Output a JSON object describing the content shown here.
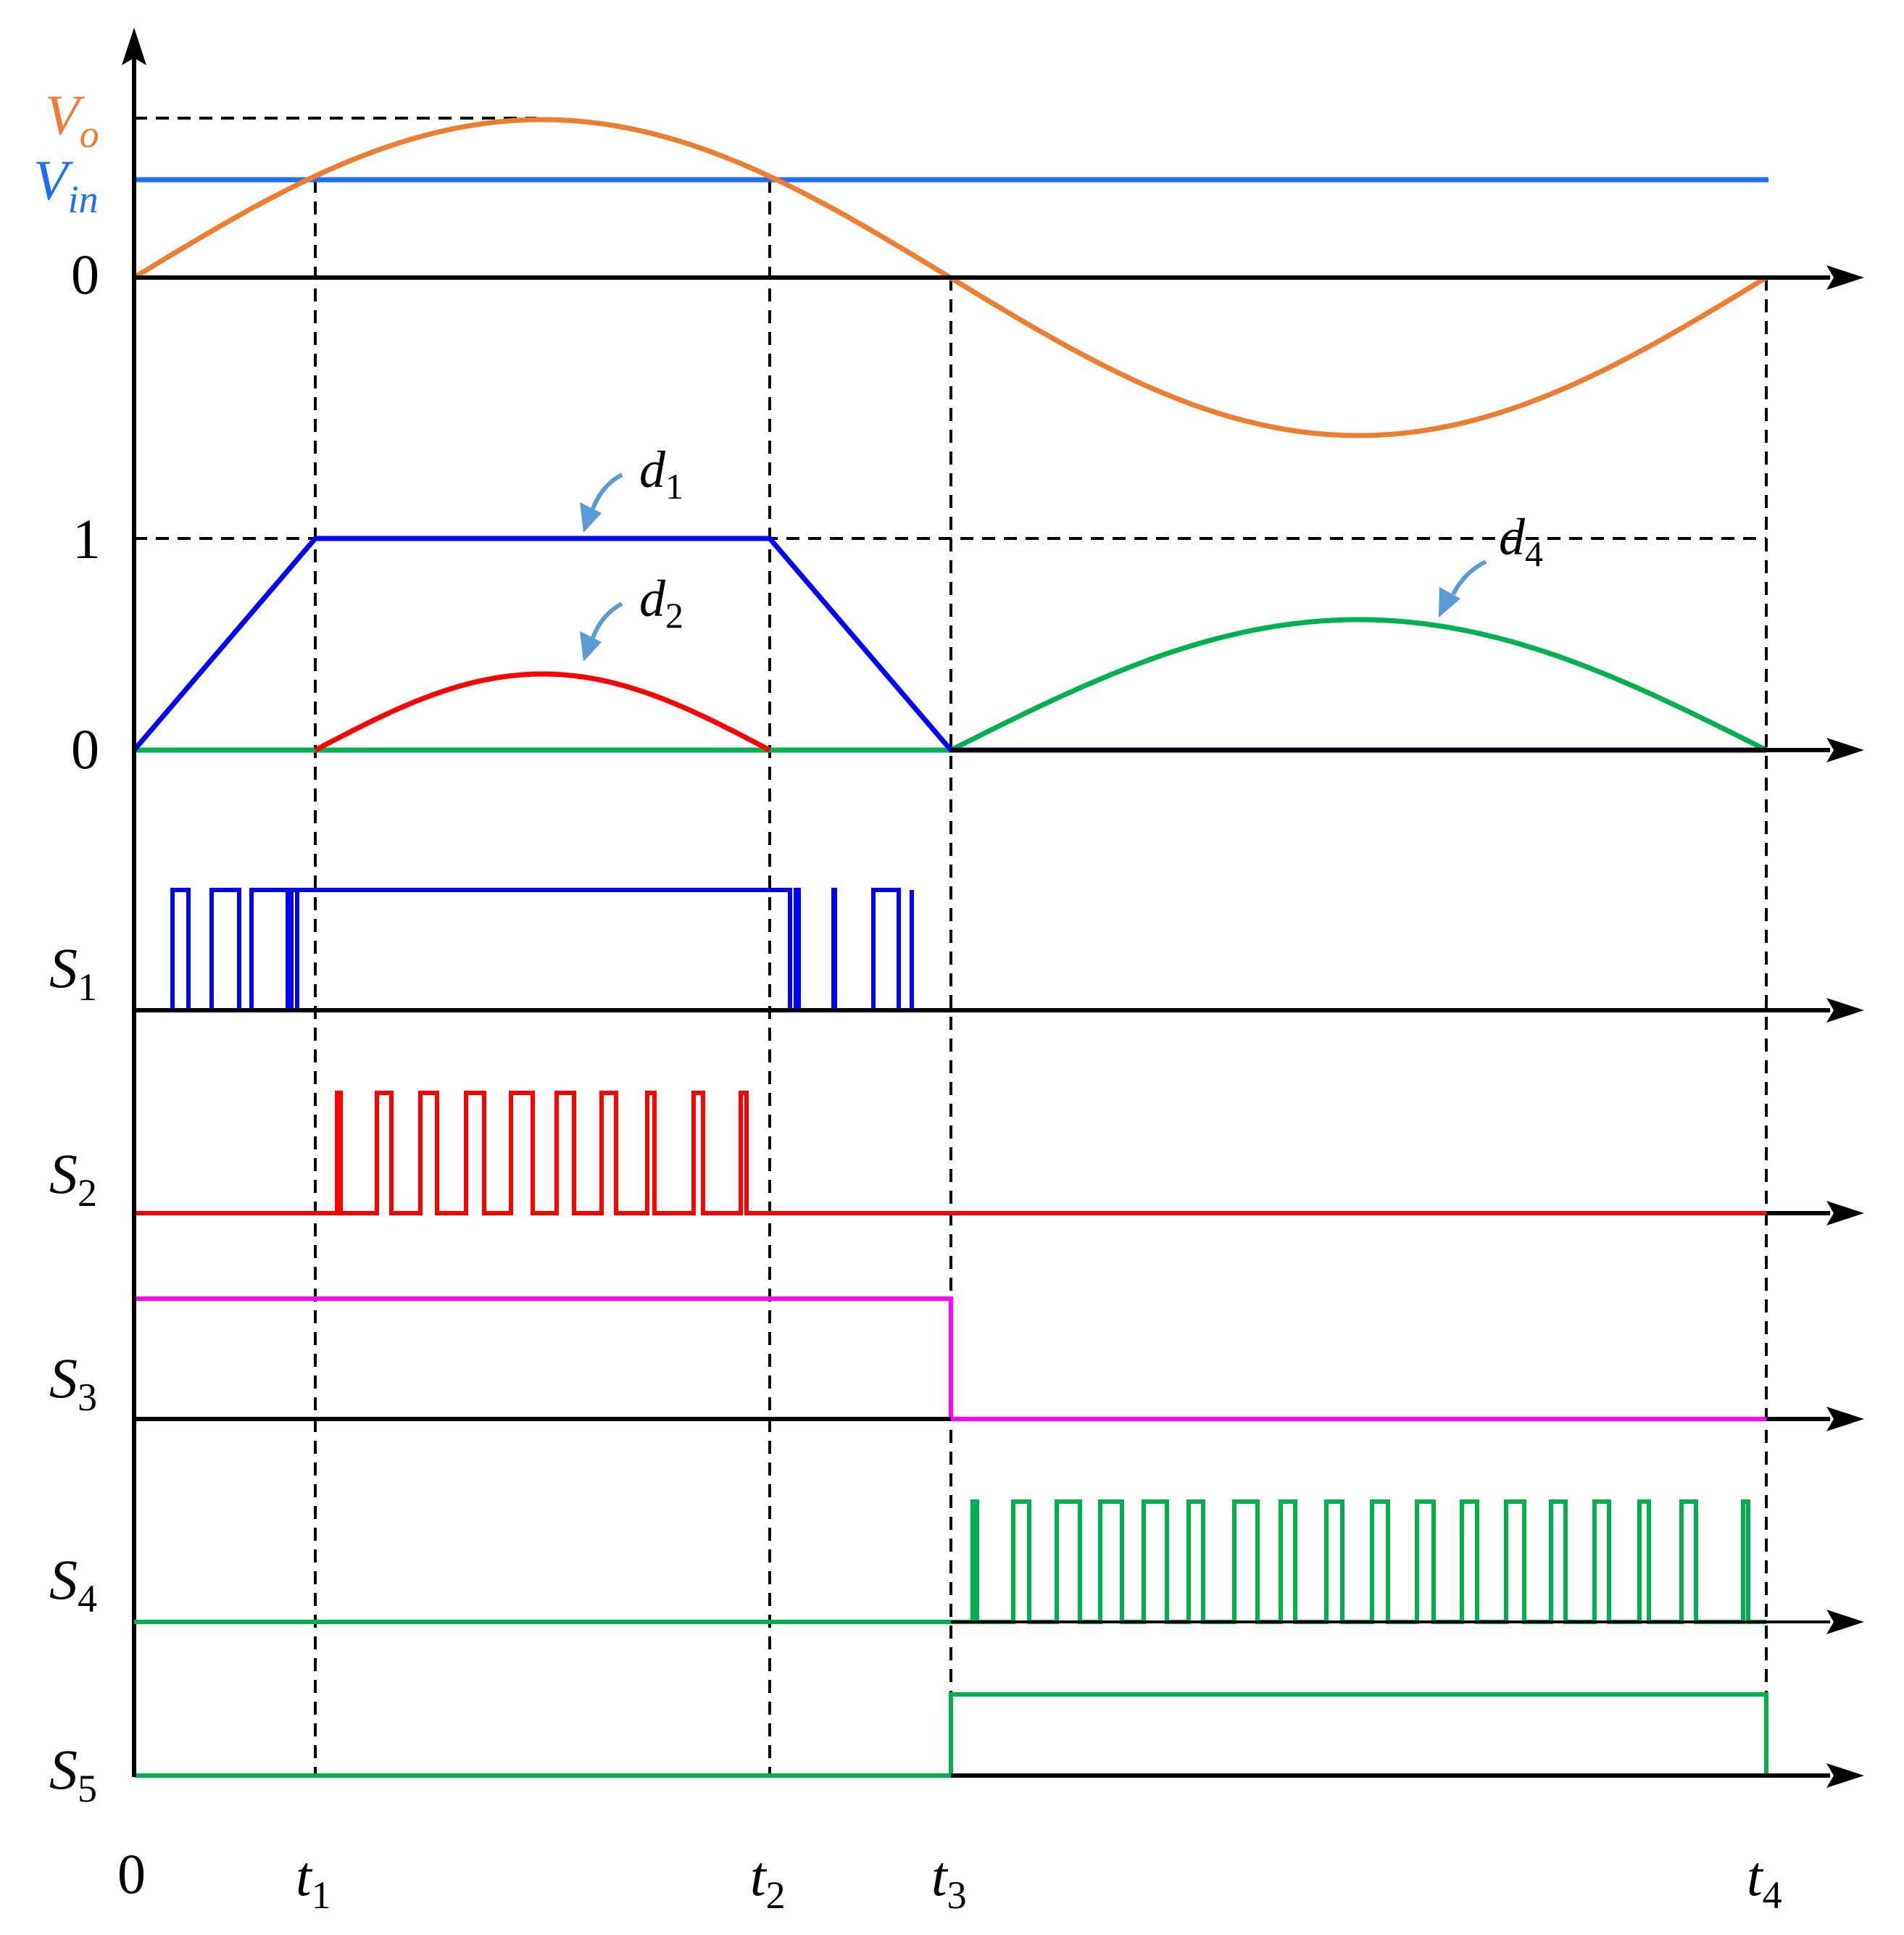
{
  "colors": {
    "axis": "#000000",
    "vo": "#ED7D31",
    "vin": "#1F6FF0",
    "blue": "#0000FF",
    "red": "#FF0000",
    "green": "#00B050",
    "magenta": "#FF00FF",
    "arrow": "#5B9BD5"
  },
  "labels": {
    "vo": {
      "base": "V",
      "sub": "o"
    },
    "vin": {
      "base": "V",
      "sub": "in"
    },
    "zero_top": "0",
    "one": "1",
    "zero_mid": "0",
    "d1": {
      "base": "d",
      "sub": "1"
    },
    "d2": {
      "base": "d",
      "sub": "2"
    },
    "d4": {
      "base": "d",
      "sub": "4"
    },
    "s1": {
      "base": "S",
      "sub": "1"
    },
    "s2": {
      "base": "S",
      "sub": "2"
    },
    "s3": {
      "base": "S",
      "sub": "3"
    },
    "s4": {
      "base": "S",
      "sub": "4"
    },
    "s5": {
      "base": "S",
      "sub": "5"
    },
    "origin": "0",
    "t1": {
      "base": "t",
      "sub": "1"
    },
    "t2": {
      "base": "t",
      "sub": "2"
    },
    "t3": {
      "base": "t",
      "sub": "3"
    },
    "t4": {
      "base": "t",
      "sub": "4"
    }
  }
}
